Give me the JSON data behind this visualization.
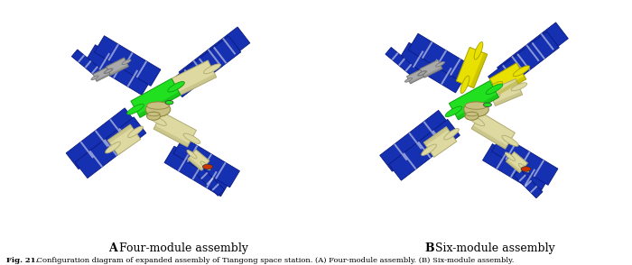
{
  "title_a_bold": "A",
  "title_a_rest": " Four-module assembly",
  "title_b_bold": "B",
  "title_b_rest": " Six-module assembly",
  "caption_bold": "Fig. 21.",
  "caption_rest": " Configuration diagram of expanded assembly of Tiangong space station. (A) Four-module assembly. (B) Six-module assembly.",
  "fig_width": 7.0,
  "fig_height": 2.94,
  "background": "#ffffff",
  "title_fontsize": 9,
  "caption_fontsize": 6.0,
  "solar_blue": "#1530b0",
  "solar_edge": "#0a1a80",
  "module_beige": "#ddd9a0",
  "module_beige_dark": "#b0aa70",
  "module_green": "#20e020",
  "module_green_dark": "#10a010",
  "module_yellow": "#e8e000",
  "module_yellow_dark": "#a8a000",
  "module_gray": "#aaaaaa",
  "module_gray_dark": "#777777",
  "hub_color": "#c8c080",
  "hub_dark": "#908840",
  "orange_port": "#cc3300",
  "white_panel": "#f0f0f0"
}
